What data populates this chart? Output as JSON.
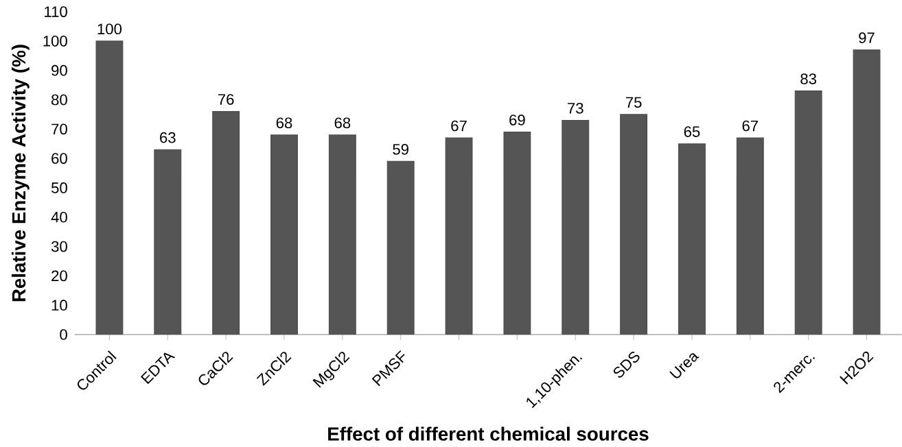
{
  "chart_data": {
    "type": "bar",
    "xlabel": "Effect of different chemical sources",
    "ylabel": "Relative Enzyme Activity (%)",
    "categories": [
      "Control",
      "EDTA",
      "CaCl2",
      "ZnCl2",
      "MgCl2",
      "PMSF",
      null,
      null,
      "1,10-phen.",
      "SDS",
      "Urea",
      null,
      "2-merc.",
      "H2O2"
    ],
    "values": [
      100,
      63,
      76,
      68,
      68,
      59,
      67,
      69,
      73,
      75,
      65,
      67,
      83,
      97
    ],
    "color": "#555555",
    "data_labels": true,
    "ylim": [
      0,
      110
    ],
    "yticks": [
      0,
      10,
      20,
      30,
      40,
      50,
      60,
      70,
      80,
      90,
      100,
      110
    ],
    "grid": false
  }
}
